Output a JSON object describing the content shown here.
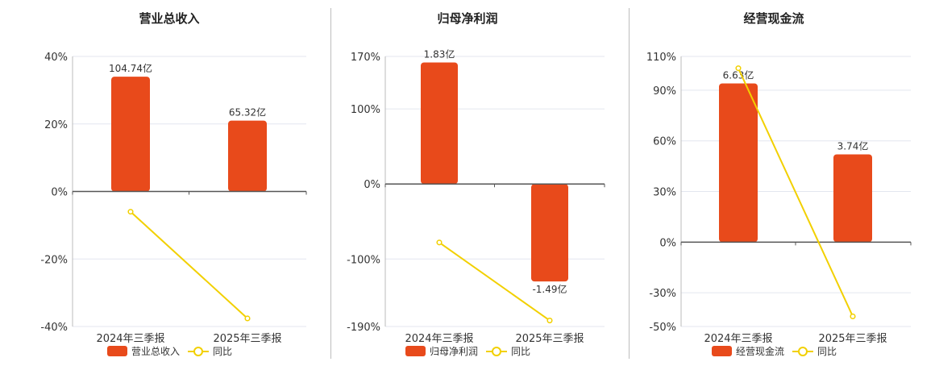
{
  "colors": {
    "bar": "#e84a1b",
    "line": "#f2d000",
    "axis": "#555555",
    "grid": "#e3e6ef",
    "divider": "#bdbdbd"
  },
  "chart_data": [
    {
      "type": "bar",
      "title": "营业总收入",
      "categories": [
        "2024年三季报",
        "2025年三季报"
      ],
      "bar_series": {
        "name": "营业总收入",
        "display": [
          104.74,
          65.32
        ],
        "labels": [
          "104.74亿",
          "65.32亿"
        ]
      },
      "line_series": {
        "name": "同比",
        "values": [
          -6.0,
          -37.6
        ]
      },
      "y_ticks": [
        40,
        20,
        0,
        -20,
        -40
      ],
      "y_tick_labels": [
        "40%",
        "20%",
        "0%",
        "-20%",
        "-40%"
      ],
      "ylim": [
        -40,
        40
      ],
      "bar_heights_pct": [
        34,
        21
      ],
      "legend": [
        "营业总收入",
        "同比"
      ]
    },
    {
      "type": "bar",
      "title": "归母净利润",
      "categories": [
        "2024年三季报",
        "2025年三季报"
      ],
      "bar_series": {
        "name": "归母净利润",
        "display": [
          1.83,
          -1.49
        ],
        "labels": [
          "1.83亿",
          "-1.49亿"
        ]
      },
      "line_series": {
        "name": "同比",
        "values": [
          -78.0,
          -182.0
        ]
      },
      "y_ticks": [
        170,
        100,
        0,
        -100,
        -190
      ],
      "y_tick_labels": [
        "170%",
        "100%",
        "0%",
        "-100%",
        "-190%"
      ],
      "ylim": [
        -190,
        170
      ],
      "bar_heights_pct": [
        162,
        -130
      ],
      "legend": [
        "归母净利润",
        "同比"
      ]
    },
    {
      "type": "bar",
      "title": "经营现金流",
      "categories": [
        "2024年三季报",
        "2025年三季报"
      ],
      "bar_series": {
        "name": "经营现金流",
        "display": [
          6.63,
          3.74
        ],
        "labels": [
          "6.63亿",
          "3.74亿"
        ]
      },
      "line_series": {
        "name": "同比",
        "values": [
          103.0,
          -44.0
        ]
      },
      "y_ticks": [
        110,
        90,
        60,
        30,
        0,
        -30,
        -50
      ],
      "y_tick_labels": [
        "110%",
        "90%",
        "60%",
        "30%",
        "0%",
        "-30%",
        "-50%"
      ],
      "ylim": [
        -50,
        110
      ],
      "bar_heights_pct": [
        94,
        52
      ],
      "legend": [
        "经营现金流",
        "同比"
      ]
    }
  ]
}
